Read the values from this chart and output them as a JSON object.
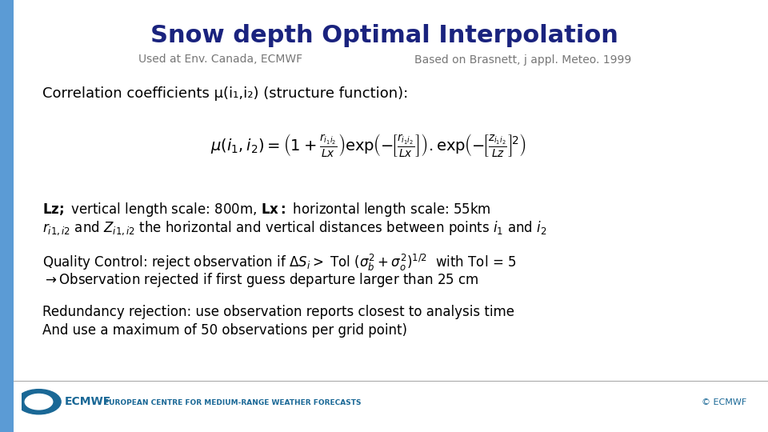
{
  "title": "Snow depth Optimal Interpolation",
  "subtitle_left": "Used at Env. Canada, ECMWF",
  "subtitle_right": "Based on Brasnett, j appl. Meteo. 1999",
  "title_color": "#1a237e",
  "subtitle_color": "#777777",
  "bg_color": "#ffffff",
  "left_bar_color": "#5b9bd5",
  "body_text_color": "#000000",
  "footer_text": "EUROPEAN CENTRE FOR MEDIUM-RANGE WEATHER FORECASTS",
  "footer_right": "© ECMWF",
  "footer_color": "#1a6896",
  "corr_heading": "Correlation coefficients μ(i₁,i₂) (structure function):",
  "red_line1": "Redundancy rejection: use observation reports closest to analysis time",
  "red_line2": "And use a maximum of 50 observations per grid point)"
}
